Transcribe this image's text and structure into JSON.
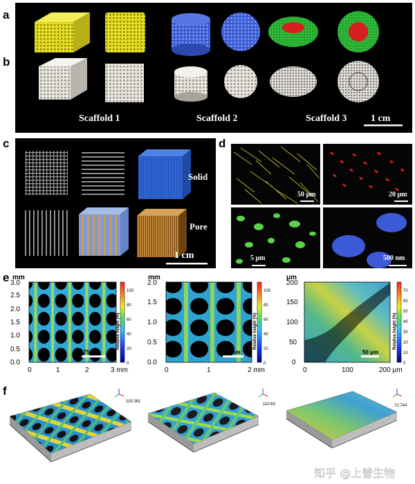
{
  "panel_labels": {
    "a": "a",
    "b": "b",
    "c": "c",
    "d": "d",
    "e": "e",
    "f": "f"
  },
  "panel_a": {
    "scaffold_labels": [
      "Scaffold 1",
      "Scaffold 2",
      "Scaffold 3"
    ],
    "scale_bar": "1 cm",
    "colors": {
      "yellow": "#e8e022",
      "blue": "#3a5cd6",
      "green": "#2fb838",
      "red": "#d81f1f"
    }
  },
  "panel_c": {
    "solid_label": "Solid",
    "pore_label": "Pore",
    "scale_bar": "1 cm"
  },
  "panel_d": {
    "scale_bars": [
      "50 μm",
      "20 μm",
      "5 μm",
      "500 nm"
    ]
  },
  "panel_e": {
    "maps": [
      {
        "unit": "mm",
        "yticks": [
          "0.0",
          "0.5",
          "1.0",
          "1.5",
          "2.0",
          "2.5",
          "3.0"
        ],
        "xticks": [
          "0",
          "1",
          "2",
          "3 mm"
        ],
        "scale_bar": "0.75 mm",
        "cbar_ticks": [
          "0",
          "20",
          "40",
          "60",
          "80",
          "100"
        ],
        "cbar_label": "Relative height (%)"
      },
      {
        "unit": "mm",
        "yticks": [
          "0.0",
          "0.5",
          "1.0",
          "1.5",
          "2.0"
        ],
        "xticks": [
          "0",
          "1",
          "2 mm"
        ],
        "scale_bar": "0.5 mm",
        "cbar_ticks": [
          "0",
          "20",
          "40",
          "60",
          "80",
          "100"
        ],
        "cbar_label": "Relative height (%)"
      },
      {
        "unit": "μm",
        "yticks": [
          "0",
          "50",
          "100",
          "150",
          "200"
        ],
        "xticks": [
          "0",
          "100",
          "200 μm"
        ],
        "scale_bar": "50 μm",
        "cbar_ticks": [
          "0",
          "10",
          "20",
          "30",
          "40",
          "50",
          "60",
          "70"
        ],
        "cbar_label": "Relative height (%)"
      }
    ]
  },
  "panel_f": {
    "max_values": [
      "119.361",
      "110.63",
      "72.744"
    ]
  },
  "watermark": "知乎 @上普生物"
}
